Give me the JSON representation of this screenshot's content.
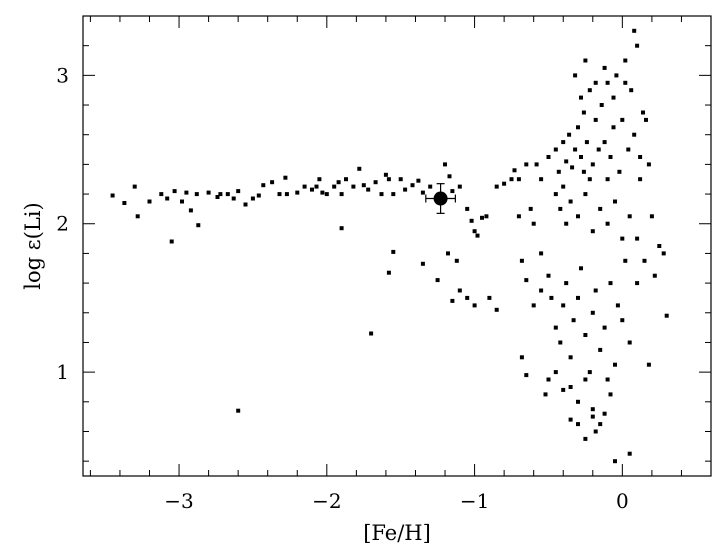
{
  "chart_data": {
    "type": "scatter",
    "xlabel": "[Fe/H]",
    "ylabel": "log ε(Li)",
    "xlim": [
      -3.65,
      0.6
    ],
    "ylim": [
      0.3,
      3.4
    ],
    "xticks": [
      -3,
      -2,
      -1,
      0
    ],
    "xtick_labels": [
      "−3",
      "−2",
      "−1",
      "0"
    ],
    "yticks": [
      1,
      2,
      3
    ],
    "ytick_labels": [
      "1",
      "2",
      "3"
    ],
    "x_minor_step": 0.2,
    "y_minor_step": 0.2,
    "grid": false,
    "highlight": {
      "x": -1.23,
      "y": 2.17,
      "xerr": 0.1,
      "yerr": 0.1
    },
    "points": [
      [
        -3.45,
        2.19
      ],
      [
        -3.37,
        2.14
      ],
      [
        -3.3,
        2.25
      ],
      [
        -3.28,
        2.05
      ],
      [
        -3.2,
        2.15
      ],
      [
        -3.12,
        2.2
      ],
      [
        -3.08,
        2.17
      ],
      [
        -3.05,
        1.88
      ],
      [
        -3.03,
        2.22
      ],
      [
        -2.98,
        2.15
      ],
      [
        -2.92,
        2.09
      ],
      [
        -2.95,
        2.21
      ],
      [
        -2.88,
        2.2
      ],
      [
        -2.87,
        1.99
      ],
      [
        -2.8,
        2.21
      ],
      [
        -2.74,
        2.18
      ],
      [
        -2.72,
        2.2
      ],
      [
        -2.67,
        2.2
      ],
      [
        -2.63,
        2.17
      ],
      [
        -2.6,
        2.22
      ],
      [
        -2.55,
        2.13
      ],
      [
        -2.5,
        2.17
      ],
      [
        -2.46,
        2.19
      ],
      [
        -2.43,
        2.26
      ],
      [
        -2.37,
        2.28
      ],
      [
        -2.32,
        2.2
      ],
      [
        -2.28,
        2.31
      ],
      [
        -2.27,
        2.2
      ],
      [
        -2.2,
        2.21
      ],
      [
        -2.15,
        2.25
      ],
      [
        -2.1,
        2.23
      ],
      [
        -2.07,
        2.25
      ],
      [
        -2.05,
        2.3
      ],
      [
        -2.03,
        2.21
      ],
      [
        -2.0,
        2.2
      ],
      [
        -1.95,
        2.25
      ],
      [
        -1.92,
        2.28
      ],
      [
        -1.9,
        2.2
      ],
      [
        -1.87,
        2.3
      ],
      [
        -1.82,
        2.25
      ],
      [
        -1.78,
        2.37
      ],
      [
        -1.75,
        2.26
      ],
      [
        -1.72,
        2.23
      ],
      [
        -1.67,
        2.28
      ],
      [
        -1.63,
        2.2
      ],
      [
        -1.6,
        2.33
      ],
      [
        -1.58,
        2.3
      ],
      [
        -1.55,
        2.2
      ],
      [
        -1.5,
        2.3
      ],
      [
        -1.47,
        2.23
      ],
      [
        -1.42,
        2.26
      ],
      [
        -1.38,
        2.29
      ],
      [
        -1.35,
        2.21
      ],
      [
        -1.3,
        2.25
      ],
      [
        -1.2,
        2.4
      ],
      [
        -1.17,
        2.32
      ],
      [
        -1.15,
        2.22
      ],
      [
        -1.1,
        2.25
      ],
      [
        -1.05,
        2.1
      ],
      [
        -1.02,
        2.02
      ],
      [
        -1.0,
        1.95
      ],
      [
        -0.98,
        1.92
      ],
      [
        -0.95,
        2.04
      ],
      [
        -0.92,
        2.05
      ],
      [
        -0.85,
        2.25
      ],
      [
        -0.8,
        2.27
      ],
      [
        -0.75,
        2.3
      ],
      [
        -0.73,
        2.36
      ],
      [
        -0.7,
        2.3
      ],
      [
        -0.7,
        2.05
      ],
      [
        -0.65,
        2.4
      ],
      [
        -0.62,
        2.1
      ],
      [
        -0.58,
        2.4
      ],
      [
        -0.55,
        2.3
      ],
      [
        -0.5,
        2.45
      ],
      [
        -0.45,
        2.5
      ],
      [
        -0.43,
        2.35
      ],
      [
        -0.4,
        2.55
      ],
      [
        -0.38,
        2.42
      ],
      [
        -0.36,
        2.6
      ],
      [
        -0.34,
        2.38
      ],
      [
        -0.32,
        2.5
      ],
      [
        -0.3,
        2.65
      ],
      [
        -0.28,
        2.45
      ],
      [
        -0.26,
        2.75
      ],
      [
        -0.24,
        2.55
      ],
      [
        -0.22,
        2.9
      ],
      [
        -0.2,
        2.4
      ],
      [
        -0.18,
        2.7
      ],
      [
        -0.16,
        2.5
      ],
      [
        -0.14,
        2.8
      ],
      [
        -0.12,
        2.55
      ],
      [
        -0.1,
        2.95
      ],
      [
        -0.08,
        2.45
      ],
      [
        -0.06,
        2.65
      ],
      [
        -0.04,
        3.0
      ],
      [
        -0.02,
        2.35
      ],
      [
        0.0,
        2.7
      ],
      [
        0.02,
        3.1
      ],
      [
        0.04,
        2.5
      ],
      [
        0.06,
        2.9
      ],
      [
        0.08,
        2.6
      ],
      [
        0.1,
        3.2
      ],
      [
        0.12,
        2.45
      ],
      [
        0.14,
        2.75
      ],
      [
        0.16,
        2.7
      ],
      [
        0.18,
        2.4
      ],
      [
        0.2,
        2.05
      ],
      [
        0.25,
        1.85
      ],
      [
        0.28,
        1.8
      ],
      [
        -0.45,
        2.2
      ],
      [
        -0.42,
        2.1
      ],
      [
        -0.38,
        2.0
      ],
      [
        -0.35,
        2.15
      ],
      [
        -0.3,
        2.05
      ],
      [
        -0.25,
        2.2
      ],
      [
        -0.2,
        1.95
      ],
      [
        -0.15,
        2.1
      ],
      [
        -0.1,
        2.0
      ],
      [
        -0.05,
        2.15
      ],
      [
        0.0,
        1.9
      ],
      [
        0.05,
        2.05
      ],
      [
        -0.32,
        3.0
      ],
      [
        -0.28,
        2.85
      ],
      [
        -0.18,
        2.95
      ],
      [
        -0.12,
        3.05
      ],
      [
        -0.06,
        2.85
      ],
      [
        0.02,
        2.95
      ],
      [
        0.08,
        3.3
      ],
      [
        -0.25,
        3.1
      ],
      [
        -0.6,
        2.0
      ],
      [
        -0.55,
        1.8
      ],
      [
        -0.5,
        1.65
      ],
      [
        -0.48,
        1.5
      ],
      [
        -0.45,
        1.3
      ],
      [
        -0.42,
        1.2
      ],
      [
        -0.4,
        1.45
      ],
      [
        -0.38,
        1.6
      ],
      [
        -0.35,
        1.1
      ],
      [
        -0.33,
        1.35
      ],
      [
        -0.3,
        1.5
      ],
      [
        -0.28,
        1.7
      ],
      [
        -0.25,
        1.25
      ],
      [
        -0.22,
        1.0
      ],
      [
        -0.2,
        1.4
      ],
      [
        -0.18,
        1.55
      ],
      [
        -0.15,
        1.15
      ],
      [
        -0.12,
        1.3
      ],
      [
        -0.1,
        0.95
      ],
      [
        -0.08,
        1.6
      ],
      [
        -0.05,
        1.05
      ],
      [
        -0.03,
        1.45
      ],
      [
        0.0,
        1.35
      ],
      [
        0.02,
        1.75
      ],
      [
        0.05,
        1.2
      ],
      [
        -0.5,
        0.95
      ],
      [
        -0.45,
        1.0
      ],
      [
        -0.4,
        0.88
      ],
      [
        -0.35,
        0.9
      ],
      [
        -0.3,
        0.8
      ],
      [
        -0.25,
        0.95
      ],
      [
        -0.2,
        0.75
      ],
      [
        -0.15,
        0.65
      ],
      [
        -0.12,
        0.72
      ],
      [
        -0.08,
        0.85
      ],
      [
        -0.35,
        0.68
      ],
      [
        -0.3,
        0.65
      ],
      [
        -0.25,
        0.55
      ],
      [
        -0.2,
        0.7
      ],
      [
        -0.18,
        0.6
      ],
      [
        -0.05,
        0.4
      ],
      [
        0.05,
        0.45
      ],
      [
        -0.52,
        0.85
      ],
      [
        -0.65,
        0.98
      ],
      [
        -0.68,
        1.1
      ],
      [
        0.18,
        1.05
      ],
      [
        0.3,
        1.38
      ],
      [
        -1.7,
        1.26
      ],
      [
        -2.6,
        0.74
      ],
      [
        -1.25,
        1.62
      ],
      [
        -1.15,
        1.48
      ],
      [
        -1.1,
        1.55
      ],
      [
        -1.05,
        1.5
      ],
      [
        -1.0,
        1.45
      ],
      [
        -0.9,
        1.5
      ],
      [
        -0.85,
        1.42
      ],
      [
        -1.35,
        1.73
      ],
      [
        -1.58,
        1.67
      ],
      [
        -1.55,
        1.81
      ],
      [
        -1.9,
        1.97
      ],
      [
        -1.18,
        1.8
      ],
      [
        -1.12,
        1.75
      ],
      [
        -0.68,
        1.75
      ],
      [
        -0.65,
        1.62
      ],
      [
        -0.6,
        1.45
      ],
      [
        -0.55,
        1.55
      ],
      [
        0.1,
        1.9
      ],
      [
        0.15,
        1.75
      ],
      [
        0.22,
        1.65
      ],
      [
        0.1,
        1.6
      ],
      [
        -0.22,
        2.3
      ],
      [
        -0.1,
        2.3
      ],
      [
        0.12,
        2.3
      ],
      [
        -0.4,
        2.25
      ],
      [
        -0.26,
        2.35
      ]
    ]
  }
}
